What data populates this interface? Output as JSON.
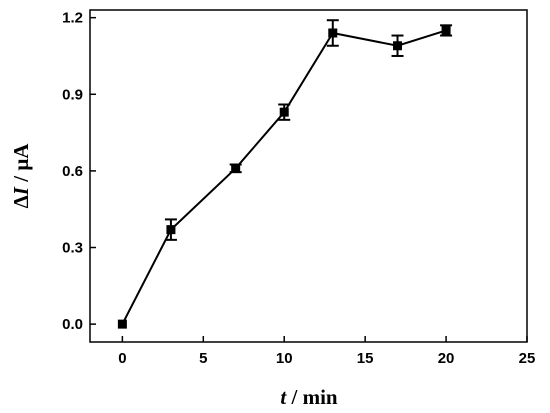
{
  "chart_data": {
    "type": "scatter",
    "xlabel_var": "t",
    "xlabel_unit": " / min",
    "ylabel_var": "I",
    "ylabel_prefix": "Δ",
    "ylabel_unit": " / μA",
    "xlim": [
      -2,
      25
    ],
    "ylim": [
      -0.07,
      1.23
    ],
    "xticks": [
      0,
      5,
      10,
      15,
      20,
      25
    ],
    "yticks": [
      0.0,
      0.3,
      0.6,
      0.9,
      1.2
    ],
    "xtick_labels": [
      "0",
      "5",
      "10",
      "15",
      "20",
      "25"
    ],
    "ytick_labels": [
      "0.0",
      "0.3",
      "0.6",
      "0.9",
      "1.2"
    ],
    "grid": false,
    "marker": "square",
    "line_color": "#000000",
    "x": [
      0,
      3,
      7,
      10,
      13,
      17,
      20
    ],
    "y": [
      0.0,
      0.37,
      0.61,
      0.83,
      1.14,
      1.09,
      1.15
    ],
    "yerr": [
      0.0,
      0.04,
      0.015,
      0.03,
      0.05,
      0.04,
      0.02
    ]
  }
}
